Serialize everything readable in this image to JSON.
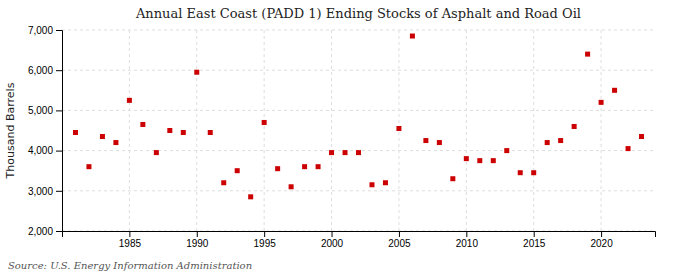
{
  "chart_data": {
    "type": "scatter",
    "title": "Annual East Coast (PADD 1) Ending Stocks of Asphalt and Road Oil",
    "ylabel": "Thousand Barrels",
    "source": "Source: U.S. Energy Information Administration",
    "color": "#cc0000",
    "marker": "square",
    "grid": true,
    "xlim": [
      1980,
      2024
    ],
    "ylim": [
      2000,
      7000
    ],
    "xticks": [
      1985,
      1990,
      1995,
      2000,
      2005,
      2010,
      2015,
      2020
    ],
    "yticks": [
      {
        "value": 2000,
        "label": "2,000"
      },
      {
        "value": 3000,
        "label": "3,000"
      },
      {
        "value": 4000,
        "label": "4,000"
      },
      {
        "value": 5000,
        "label": "5,000"
      },
      {
        "value": 6000,
        "label": "6,000"
      },
      {
        "value": 7000,
        "label": "7,000"
      }
    ],
    "x": [
      1981,
      1982,
      1983,
      1984,
      1985,
      1986,
      1987,
      1988,
      1989,
      1990,
      1991,
      1992,
      1993,
      1994,
      1995,
      1996,
      1997,
      1998,
      1999,
      2000,
      2001,
      2002,
      2003,
      2004,
      2005,
      2006,
      2007,
      2008,
      2009,
      2010,
      2011,
      2012,
      2013,
      2014,
      2015,
      2016,
      2017,
      2018,
      2019,
      2020,
      2021,
      2022,
      2023
    ],
    "values": [
      4450,
      3600,
      4350,
      4200,
      5250,
      4650,
      3950,
      4500,
      4450,
      5950,
      4450,
      3200,
      3500,
      2850,
      4700,
      3550,
      3100,
      3600,
      3600,
      3950,
      3950,
      3950,
      3150,
      3200,
      4550,
      6850,
      4250,
      4200,
      3300,
      3800,
      3750,
      3750,
      4000,
      3450,
      3450,
      4200,
      4250,
      4600,
      6400,
      5200,
      5500,
      4050,
      4350
    ]
  }
}
